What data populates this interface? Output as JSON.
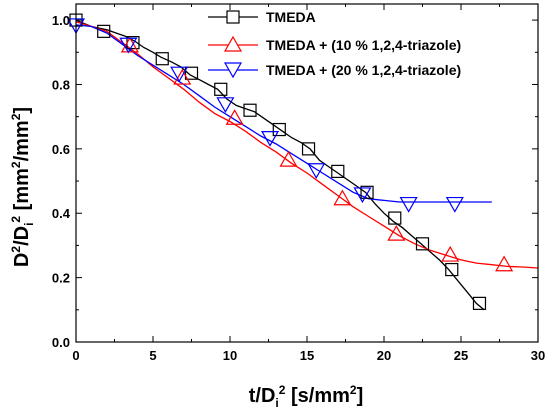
{
  "chart_data": {
    "type": "line",
    "title": "",
    "xlabel": {
      "base": "t/D",
      "sub": "i",
      "sup": "2",
      "unit_open": " [s/mm",
      "unit_sup": "2",
      "unit_close": "]"
    },
    "ylabel": {
      "base": "D",
      "sup1": "2",
      "slash": "/D",
      "sub": "i",
      "sup2": "2",
      "unit_open": " [mm",
      "unit_sup1": "2",
      "unit_mid": "/mm",
      "unit_sup2": "2",
      "unit_close": "]"
    },
    "xlim": [
      0,
      30
    ],
    "ylim": [
      0,
      1.05
    ],
    "xticks": [
      0,
      5,
      10,
      15,
      20,
      25,
      30
    ],
    "yticks": [
      0.0,
      0.2,
      0.4,
      0.6,
      0.8,
      1.0
    ],
    "xtick_labels": [
      "0",
      "5",
      "10",
      "15",
      "20",
      "25",
      "30"
    ],
    "ytick_labels": [
      "0.0",
      "0.2",
      "0.4",
      "0.6",
      "0.8",
      "1.0"
    ],
    "grid": false,
    "legend_position": "top-right",
    "series": [
      {
        "name": "TMEDA",
        "color": "#000000",
        "marker": "square",
        "x": [
          0.0,
          0.5,
          1.0,
          1.5,
          2.0,
          2.6,
          3.2,
          3.8,
          4.4,
          5.0,
          5.5,
          6.2,
          6.8,
          7.4,
          8.0,
          8.6,
          9.2,
          9.8,
          10.4,
          11.0,
          11.6,
          12.2,
          12.8,
          13.4,
          14.0,
          14.6,
          15.2,
          15.8,
          16.4,
          17.0,
          17.6,
          18.2,
          18.8,
          19.4,
          20.0,
          20.6,
          21.2,
          21.8,
          22.4,
          23.0,
          23.6,
          24.2,
          24.8,
          25.4,
          26.0,
          26.5
        ],
        "y": [
          1.0,
          0.99,
          0.98,
          0.975,
          0.97,
          0.96,
          0.95,
          0.935,
          0.915,
          0.9,
          0.885,
          0.87,
          0.855,
          0.83,
          0.815,
          0.8,
          0.785,
          0.755,
          0.735,
          0.725,
          0.715,
          0.695,
          0.675,
          0.655,
          0.635,
          0.62,
          0.6,
          0.565,
          0.545,
          0.525,
          0.505,
          0.485,
          0.465,
          0.43,
          0.4,
          0.375,
          0.355,
          0.33,
          0.305,
          0.28,
          0.255,
          0.225,
          0.19,
          0.155,
          0.12,
          0.1
        ],
        "marker_x": [
          0.0,
          1.8,
          3.7,
          5.6,
          7.5,
          9.4,
          11.3,
          13.2,
          15.1,
          17.0,
          18.9,
          20.7,
          22.5,
          24.4,
          26.2
        ],
        "marker_y": [
          1.0,
          0.965,
          0.93,
          0.88,
          0.835,
          0.785,
          0.72,
          0.66,
          0.6,
          0.53,
          0.465,
          0.385,
          0.305,
          0.225,
          0.12
        ]
      },
      {
        "name": "TMEDA + (10 % 1,2,4-triazole)",
        "color": "#ff0000",
        "marker": "triangle-up",
        "x": [
          0.0,
          1.0,
          2.0,
          3.0,
          4.0,
          5.0,
          6.0,
          7.0,
          8.0,
          9.0,
          10.0,
          11.0,
          12.0,
          13.0,
          14.0,
          15.0,
          16.0,
          17.0,
          18.0,
          19.0,
          20.0,
          21.0,
          22.0,
          23.0,
          24.0,
          25.0,
          26.0,
          27.0,
          28.0,
          29.0,
          30.0
        ],
        "y": [
          0.995,
          0.98,
          0.965,
          0.93,
          0.895,
          0.855,
          0.82,
          0.785,
          0.745,
          0.71,
          0.685,
          0.655,
          0.62,
          0.59,
          0.555,
          0.525,
          0.49,
          0.455,
          0.42,
          0.39,
          0.36,
          0.33,
          0.305,
          0.285,
          0.27,
          0.255,
          0.245,
          0.24,
          0.235,
          0.233,
          0.23
        ],
        "marker_x": [
          3.5,
          6.9,
          10.3,
          13.8,
          17.3,
          20.8,
          24.3,
          27.8
        ],
        "marker_y": [
          0.92,
          0.82,
          0.695,
          0.565,
          0.445,
          0.335,
          0.27,
          0.24
        ]
      },
      {
        "name": "TMEDA + (20 % 1,2,4-triazole)",
        "color": "#0000ff",
        "marker": "triangle-down",
        "x": [
          0.0,
          1.0,
          2.0,
          3.0,
          4.0,
          5.0,
          6.0,
          7.0,
          8.0,
          9.0,
          10.0,
          11.0,
          12.0,
          13.0,
          14.0,
          15.0,
          16.0,
          17.0,
          18.0,
          18.5,
          19.0,
          20.0,
          21.0,
          22.0,
          23.0,
          24.0,
          25.0,
          26.0,
          27.0
        ],
        "y": [
          0.985,
          0.98,
          0.96,
          0.925,
          0.89,
          0.86,
          0.83,
          0.8,
          0.765,
          0.73,
          0.7,
          0.67,
          0.64,
          0.615,
          0.585,
          0.555,
          0.525,
          0.495,
          0.465,
          0.455,
          0.445,
          0.44,
          0.435,
          0.435,
          0.435,
          0.435,
          0.435,
          0.435,
          0.435
        ],
        "marker_x": [
          0.0,
          3.4,
          6.7,
          9.7,
          12.6,
          15.6,
          18.6,
          21.6,
          24.6
        ],
        "marker_y": [
          0.985,
          0.925,
          0.835,
          0.74,
          0.635,
          0.535,
          0.46,
          0.43,
          0.43
        ]
      }
    ]
  }
}
